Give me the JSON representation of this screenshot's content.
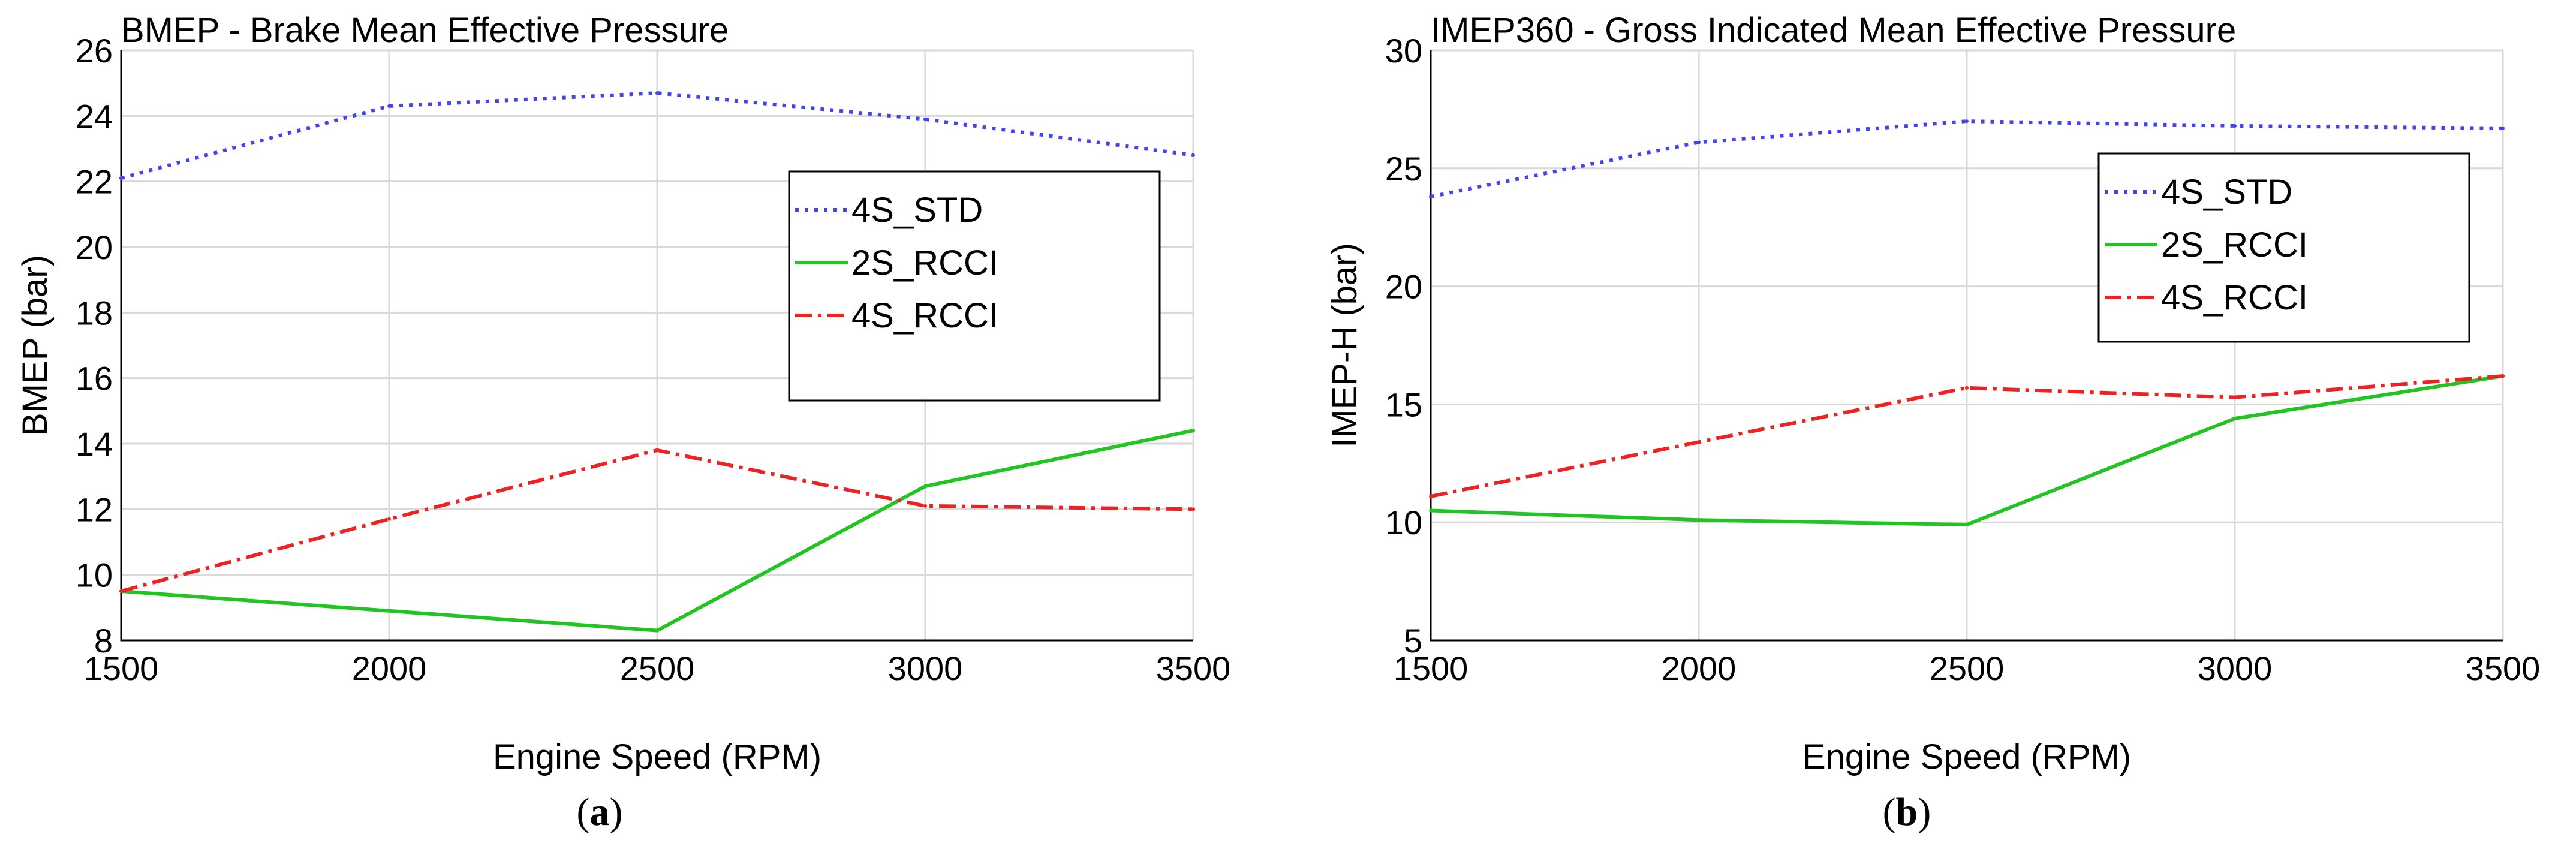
{
  "chart_data": [
    {
      "type": "line",
      "title": "BMEP - Brake Mean Effective Pressure",
      "xlabel": "Engine Speed (RPM)",
      "ylabel": "BMEP (bar)",
      "xlim": [
        1500,
        3500
      ],
      "ylim": [
        8,
        26
      ],
      "xticks": [
        "1500",
        "2000",
        "2500",
        "3000",
        "3500"
      ],
      "yticks": [
        "8",
        "10",
        "12",
        "14",
        "16",
        "18",
        "20",
        "22",
        "24",
        "26"
      ],
      "grid": true,
      "legend_position": "upper-right",
      "caption_letter": "a",
      "x": [
        1500,
        2000,
        2500,
        3000,
        3500
      ],
      "series": [
        {
          "name": "4S_STD",
          "values": [
            22.1,
            24.3,
            24.7,
            23.9,
            22.8
          ],
          "color": "#4444ee",
          "dash": "dotted"
        },
        {
          "name": "2S_RCCI",
          "values": [
            9.5,
            8.9,
            8.3,
            12.7,
            14.4
          ],
          "color": "#22c422",
          "dash": "solid"
        },
        {
          "name": "4S_RCCI",
          "values": [
            9.5,
            11.7,
            13.8,
            12.1,
            12.0
          ],
          "color": "#ee2222",
          "dash": "dashdot"
        }
      ]
    },
    {
      "type": "line",
      "title": "IMEP360 - Gross Indicated Mean Effective Pressure",
      "xlabel": "Engine Speed (RPM)",
      "ylabel": "IMEP-H (bar)",
      "xlim": [
        1500,
        3500
      ],
      "ylim": [
        5,
        30
      ],
      "xticks": [
        "1500",
        "2000",
        "2500",
        "3000",
        "3500"
      ],
      "yticks": [
        "5",
        "10",
        "15",
        "20",
        "25",
        "30"
      ],
      "grid": true,
      "legend_position": "upper-right",
      "caption_letter": "b",
      "x": [
        1500,
        2000,
        2500,
        3000,
        3500
      ],
      "series": [
        {
          "name": "4S_STD",
          "values": [
            23.8,
            26.1,
            27.0,
            26.8,
            26.7
          ],
          "color": "#4444ee",
          "dash": "dotted"
        },
        {
          "name": "2S_RCCI",
          "values": [
            10.5,
            10.1,
            9.9,
            14.4,
            16.2
          ],
          "color": "#22c422",
          "dash": "solid"
        },
        {
          "name": "4S_RCCI",
          "values": [
            11.1,
            13.4,
            15.7,
            15.3,
            16.2
          ],
          "color": "#ee2222",
          "dash": "dashdot"
        }
      ]
    }
  ]
}
